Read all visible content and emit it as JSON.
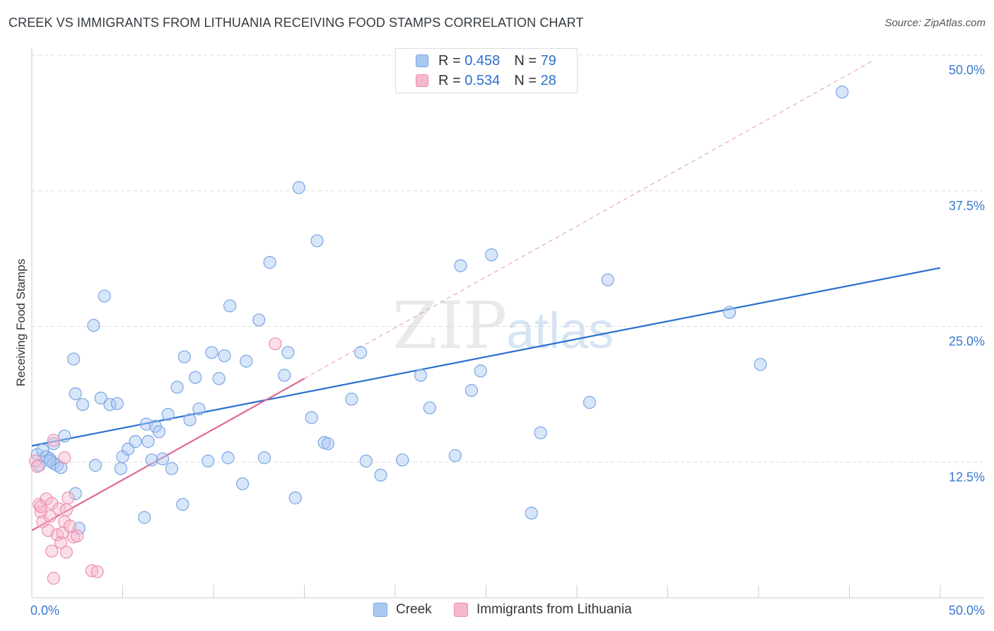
{
  "title": "CREEK VS IMMIGRANTS FROM LITHUANIA RECEIVING FOOD STAMPS CORRELATION CHART",
  "source": "Source: ZipAtlas.com",
  "watermark": {
    "zip": "ZIP",
    "atlas": "atlas"
  },
  "legend_top": [
    {
      "r_label": "R =",
      "r_value": "0.458",
      "n_label": "N =",
      "n_value": "79"
    },
    {
      "r_label": "R =",
      "r_value": "0.534",
      "n_label": "N =",
      "n_value": "28"
    }
  ],
  "colors": {
    "creek_fill": "#a9c8f2",
    "creek_stroke": "#7aa6e3",
    "creek_line": "#2a6fcf",
    "lith_fill": "#f6b8cb",
    "lith_stroke": "#ec8fad",
    "lith_line": "#e06892",
    "axis_label": "#3a78d0",
    "grid": "#dcdcdc"
  },
  "chart_data": {
    "type": "scatter",
    "title": "CREEK VS IMMIGRANTS FROM LITHUANIA RECEIVING FOOD STAMPS CORRELATION CHART",
    "xlabel": "",
    "ylabel": "Receiving Food Stamps",
    "xlim": [
      0,
      50
    ],
    "ylim": [
      0,
      50
    ],
    "x_tick_labels": [
      "0.0%",
      "50.0%"
    ],
    "y_ticks": [
      12.5,
      25.0,
      37.5,
      50.0
    ],
    "y_tick_labels": [
      "12.5%",
      "25.0%",
      "37.5%",
      "50.0%"
    ],
    "grid": true,
    "legend_position": "bottom",
    "series": [
      {
        "name": "Creek",
        "r": 0.458,
        "n": 79,
        "trend": {
          "x": [
            0,
            50
          ],
          "y": [
            14.0,
            30.4
          ]
        },
        "points": [
          [
            0.3,
            13.2
          ],
          [
            0.4,
            12.2
          ],
          [
            0.6,
            13.6
          ],
          [
            0.8,
            13.0
          ],
          [
            1.0,
            12.8
          ],
          [
            1.2,
            12.4
          ],
          [
            1.4,
            12.2
          ],
          [
            1.6,
            12.0
          ],
          [
            1.2,
            14.2
          ],
          [
            1.8,
            14.9
          ],
          [
            2.3,
            22.0
          ],
          [
            2.4,
            9.6
          ],
          [
            2.6,
            6.4
          ],
          [
            2.8,
            17.8
          ],
          [
            2.4,
            18.8
          ],
          [
            3.5,
            12.2
          ],
          [
            3.4,
            25.1
          ],
          [
            3.8,
            18.4
          ],
          [
            4.3,
            17.8
          ],
          [
            4.0,
            27.8
          ],
          [
            4.9,
            11.9
          ],
          [
            4.7,
            17.9
          ],
          [
            5.0,
            13.0
          ],
          [
            5.3,
            13.7
          ],
          [
            5.7,
            14.4
          ],
          [
            6.2,
            7.4
          ],
          [
            6.3,
            16.0
          ],
          [
            6.4,
            14.4
          ],
          [
            6.6,
            12.7
          ],
          [
            6.8,
            15.8
          ],
          [
            7.0,
            15.3
          ],
          [
            7.2,
            12.8
          ],
          [
            7.5,
            16.9
          ],
          [
            7.7,
            11.9
          ],
          [
            8.0,
            19.4
          ],
          [
            8.3,
            8.6
          ],
          [
            8.4,
            22.2
          ],
          [
            8.7,
            16.4
          ],
          [
            9.0,
            20.3
          ],
          [
            9.2,
            17.4
          ],
          [
            9.7,
            12.6
          ],
          [
            9.9,
            22.6
          ],
          [
            10.3,
            20.2
          ],
          [
            10.6,
            22.3
          ],
          [
            10.8,
            12.9
          ],
          [
            10.9,
            26.9
          ],
          [
            11.6,
            10.5
          ],
          [
            11.8,
            21.8
          ],
          [
            12.5,
            25.6
          ],
          [
            12.8,
            12.9
          ],
          [
            13.1,
            30.9
          ],
          [
            13.9,
            20.5
          ],
          [
            14.1,
            22.6
          ],
          [
            14.5,
            9.2
          ],
          [
            14.7,
            37.8
          ],
          [
            15.4,
            16.6
          ],
          [
            15.7,
            32.9
          ],
          [
            16.1,
            14.3
          ],
          [
            16.3,
            14.2
          ],
          [
            17.6,
            18.3
          ],
          [
            18.1,
            22.6
          ],
          [
            18.4,
            12.6
          ],
          [
            19.2,
            11.3
          ],
          [
            20.4,
            12.7
          ],
          [
            21.4,
            20.5
          ],
          [
            21.9,
            17.5
          ],
          [
            23.3,
            13.1
          ],
          [
            23.6,
            30.6
          ],
          [
            24.2,
            19.1
          ],
          [
            24.7,
            20.9
          ],
          [
            25.3,
            31.6
          ],
          [
            27.5,
            7.8
          ],
          [
            28.0,
            15.2
          ],
          [
            30.7,
            18.0
          ],
          [
            31.7,
            29.3
          ],
          [
            38.4,
            26.3
          ],
          [
            40.1,
            21.5
          ],
          [
            44.6,
            46.6
          ],
          [
            1.0,
            12.6
          ]
        ]
      },
      {
        "name": "Immigrants from Lithuania",
        "r": 0.534,
        "n": 28,
        "trend": {
          "x": [
            0,
            15.0
          ],
          "y": [
            6.2,
            20.2
          ],
          "ext_x": [
            15.0,
            46.3
          ],
          "ext_y": [
            20.2,
            49.5
          ]
        },
        "points": [
          [
            0.2,
            12.6
          ],
          [
            0.3,
            12.1
          ],
          [
            0.4,
            8.6
          ],
          [
            0.5,
            7.9
          ],
          [
            0.5,
            8.4
          ],
          [
            0.6,
            7.0
          ],
          [
            0.8,
            9.1
          ],
          [
            0.9,
            6.2
          ],
          [
            1.0,
            7.5
          ],
          [
            1.1,
            8.7
          ],
          [
            1.1,
            4.3
          ],
          [
            1.2,
            1.8
          ],
          [
            1.2,
            14.5
          ],
          [
            1.4,
            5.8
          ],
          [
            1.5,
            8.2
          ],
          [
            1.6,
            5.1
          ],
          [
            1.7,
            6.0
          ],
          [
            1.8,
            7.0
          ],
          [
            1.8,
            12.9
          ],
          [
            1.9,
            4.2
          ],
          [
            1.9,
            8.1
          ],
          [
            2.0,
            9.2
          ],
          [
            2.1,
            6.6
          ],
          [
            2.3,
            5.6
          ],
          [
            2.5,
            5.7
          ],
          [
            3.3,
            2.5
          ],
          [
            3.6,
            2.4
          ],
          [
            13.4,
            23.4
          ]
        ]
      }
    ]
  },
  "legend_bottom": [
    {
      "label": "Creek"
    },
    {
      "label": "Immigrants from Lithuania"
    }
  ]
}
